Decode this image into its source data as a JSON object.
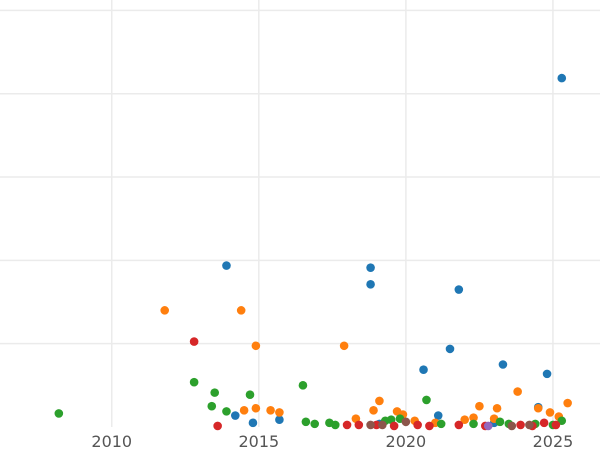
{
  "chart_data": {
    "type": "scatter",
    "title": "",
    "xlabel": "",
    "ylabel": "",
    "xlim": [
      2006.2,
      2026.6
    ],
    "ylim": [
      0,
      41
    ],
    "x_ticks": [
      2010,
      2015,
      2020,
      2025
    ],
    "x_tick_labels": [
      "2010",
      "2015",
      "2020",
      "2025"
    ],
    "y_gridlines": [
      8,
      16,
      24,
      32,
      40
    ],
    "grid": true,
    "legend": "none",
    "series": [
      {
        "color": "#1f77b4",
        "points": [
          [
            2025.3,
            33.5
          ],
          [
            2013.9,
            15.5
          ],
          [
            2018.8,
            15.3
          ],
          [
            2018.8,
            13.7
          ],
          [
            2021.8,
            13.2
          ],
          [
            2021.5,
            7.5
          ],
          [
            2020.6,
            5.5
          ],
          [
            2023.3,
            6.0
          ],
          [
            2024.8,
            5.1
          ],
          [
            2014.2,
            1.1
          ],
          [
            2014.8,
            0.4
          ],
          [
            2015.7,
            0.7
          ],
          [
            2021.1,
            1.1
          ],
          [
            2024.5,
            1.9
          ],
          [
            2019.1,
            0.3
          ],
          [
            2023.0,
            0.4
          ]
        ]
      },
      {
        "color": "#ff7f0e",
        "points": [
          [
            2011.8,
            11.2
          ],
          [
            2014.4,
            11.2
          ],
          [
            2014.9,
            7.8
          ],
          [
            2017.9,
            7.8
          ],
          [
            2015.4,
            1.6
          ],
          [
            2015.7,
            1.4
          ],
          [
            2014.5,
            1.6
          ],
          [
            2014.9,
            1.8
          ],
          [
            2018.3,
            0.8
          ],
          [
            2018.9,
            1.6
          ],
          [
            2019.1,
            2.5
          ],
          [
            2019.7,
            1.5
          ],
          [
            2019.9,
            1.2
          ],
          [
            2020.3,
            0.6
          ],
          [
            2021.0,
            0.4
          ],
          [
            2022.0,
            0.7
          ],
          [
            2022.3,
            0.9
          ],
          [
            2022.5,
            2.0
          ],
          [
            2023.1,
            1.8
          ],
          [
            2023.8,
            3.4
          ],
          [
            2024.5,
            1.8
          ],
          [
            2024.9,
            1.4
          ],
          [
            2025.2,
            1.0
          ],
          [
            2025.5,
            2.3
          ],
          [
            2023.0,
            0.8
          ]
        ]
      },
      {
        "color": "#2ca02c",
        "points": [
          [
            2008.2,
            1.3
          ],
          [
            2012.8,
            4.3
          ],
          [
            2013.5,
            3.3
          ],
          [
            2014.7,
            3.1
          ],
          [
            2013.4,
            2.0
          ],
          [
            2013.9,
            1.5
          ],
          [
            2016.5,
            4.0
          ],
          [
            2016.6,
            0.5
          ],
          [
            2016.9,
            0.3
          ],
          [
            2017.4,
            0.4
          ],
          [
            2017.6,
            0.2
          ],
          [
            2019.3,
            0.6
          ],
          [
            2019.5,
            0.7
          ],
          [
            2019.8,
            0.8
          ],
          [
            2020.7,
            2.6
          ],
          [
            2021.2,
            0.3
          ],
          [
            2022.3,
            0.3
          ],
          [
            2023.2,
            0.5
          ],
          [
            2023.5,
            0.3
          ],
          [
            2024.4,
            0.3
          ],
          [
            2025.0,
            0.2
          ],
          [
            2025.3,
            0.6
          ]
        ]
      },
      {
        "color": "#d62728",
        "points": [
          [
            2012.8,
            8.2
          ],
          [
            2013.6,
            0.1
          ],
          [
            2018.0,
            0.2
          ],
          [
            2018.4,
            0.2
          ],
          [
            2019.6,
            0.1
          ],
          [
            2020.4,
            0.2
          ],
          [
            2020.8,
            0.1
          ],
          [
            2021.8,
            0.2
          ],
          [
            2022.7,
            0.1
          ],
          [
            2023.9,
            0.2
          ],
          [
            2024.3,
            0.1
          ],
          [
            2024.7,
            0.4
          ],
          [
            2025.1,
            0.2
          ],
          [
            2019.0,
            0.2
          ]
        ]
      },
      {
        "color": "#8c564b",
        "points": [
          [
            2018.8,
            0.2
          ],
          [
            2019.2,
            0.2
          ],
          [
            2020.0,
            0.5
          ],
          [
            2024.2,
            0.2
          ],
          [
            2023.6,
            0.1
          ]
        ]
      },
      {
        "color": "#9467bd",
        "points": [
          [
            2022.8,
            0.1
          ]
        ]
      }
    ]
  }
}
